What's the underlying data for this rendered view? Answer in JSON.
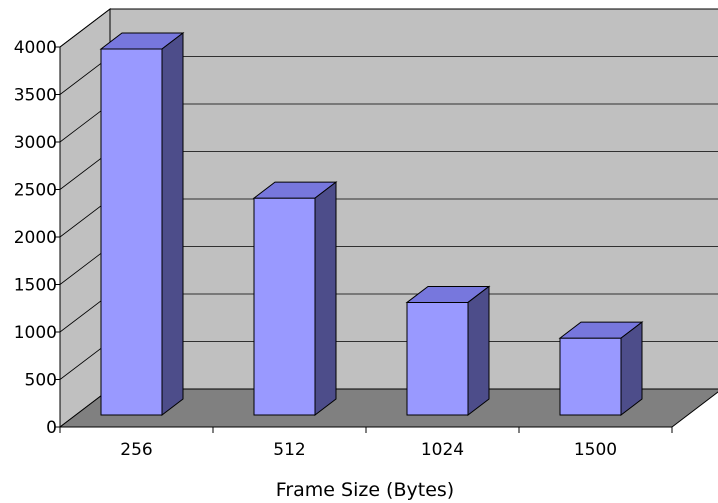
{
  "chart_data": {
    "type": "bar",
    "style": "3d-column",
    "title": "",
    "xlabel": "Frame Size (Bytes)",
    "ylabel": "",
    "categories": [
      "256",
      "512",
      "1024",
      "1500"
    ],
    "values": [
      4000,
      2370,
      1230,
      840
    ],
    "ylim": [
      0,
      4000
    ],
    "yticks": [
      "0",
      "500",
      "1000",
      "1500",
      "2000",
      "2500",
      "3000",
      "3500",
      "4000"
    ],
    "grid": true,
    "legend": "none",
    "colors": {
      "bar_front": "#9999ff",
      "bar_top": "#7777dd",
      "bar_side": "#4d4d8a",
      "wall": "#c0c0c0",
      "floor": "#808080",
      "gridline": "#000000"
    }
  }
}
